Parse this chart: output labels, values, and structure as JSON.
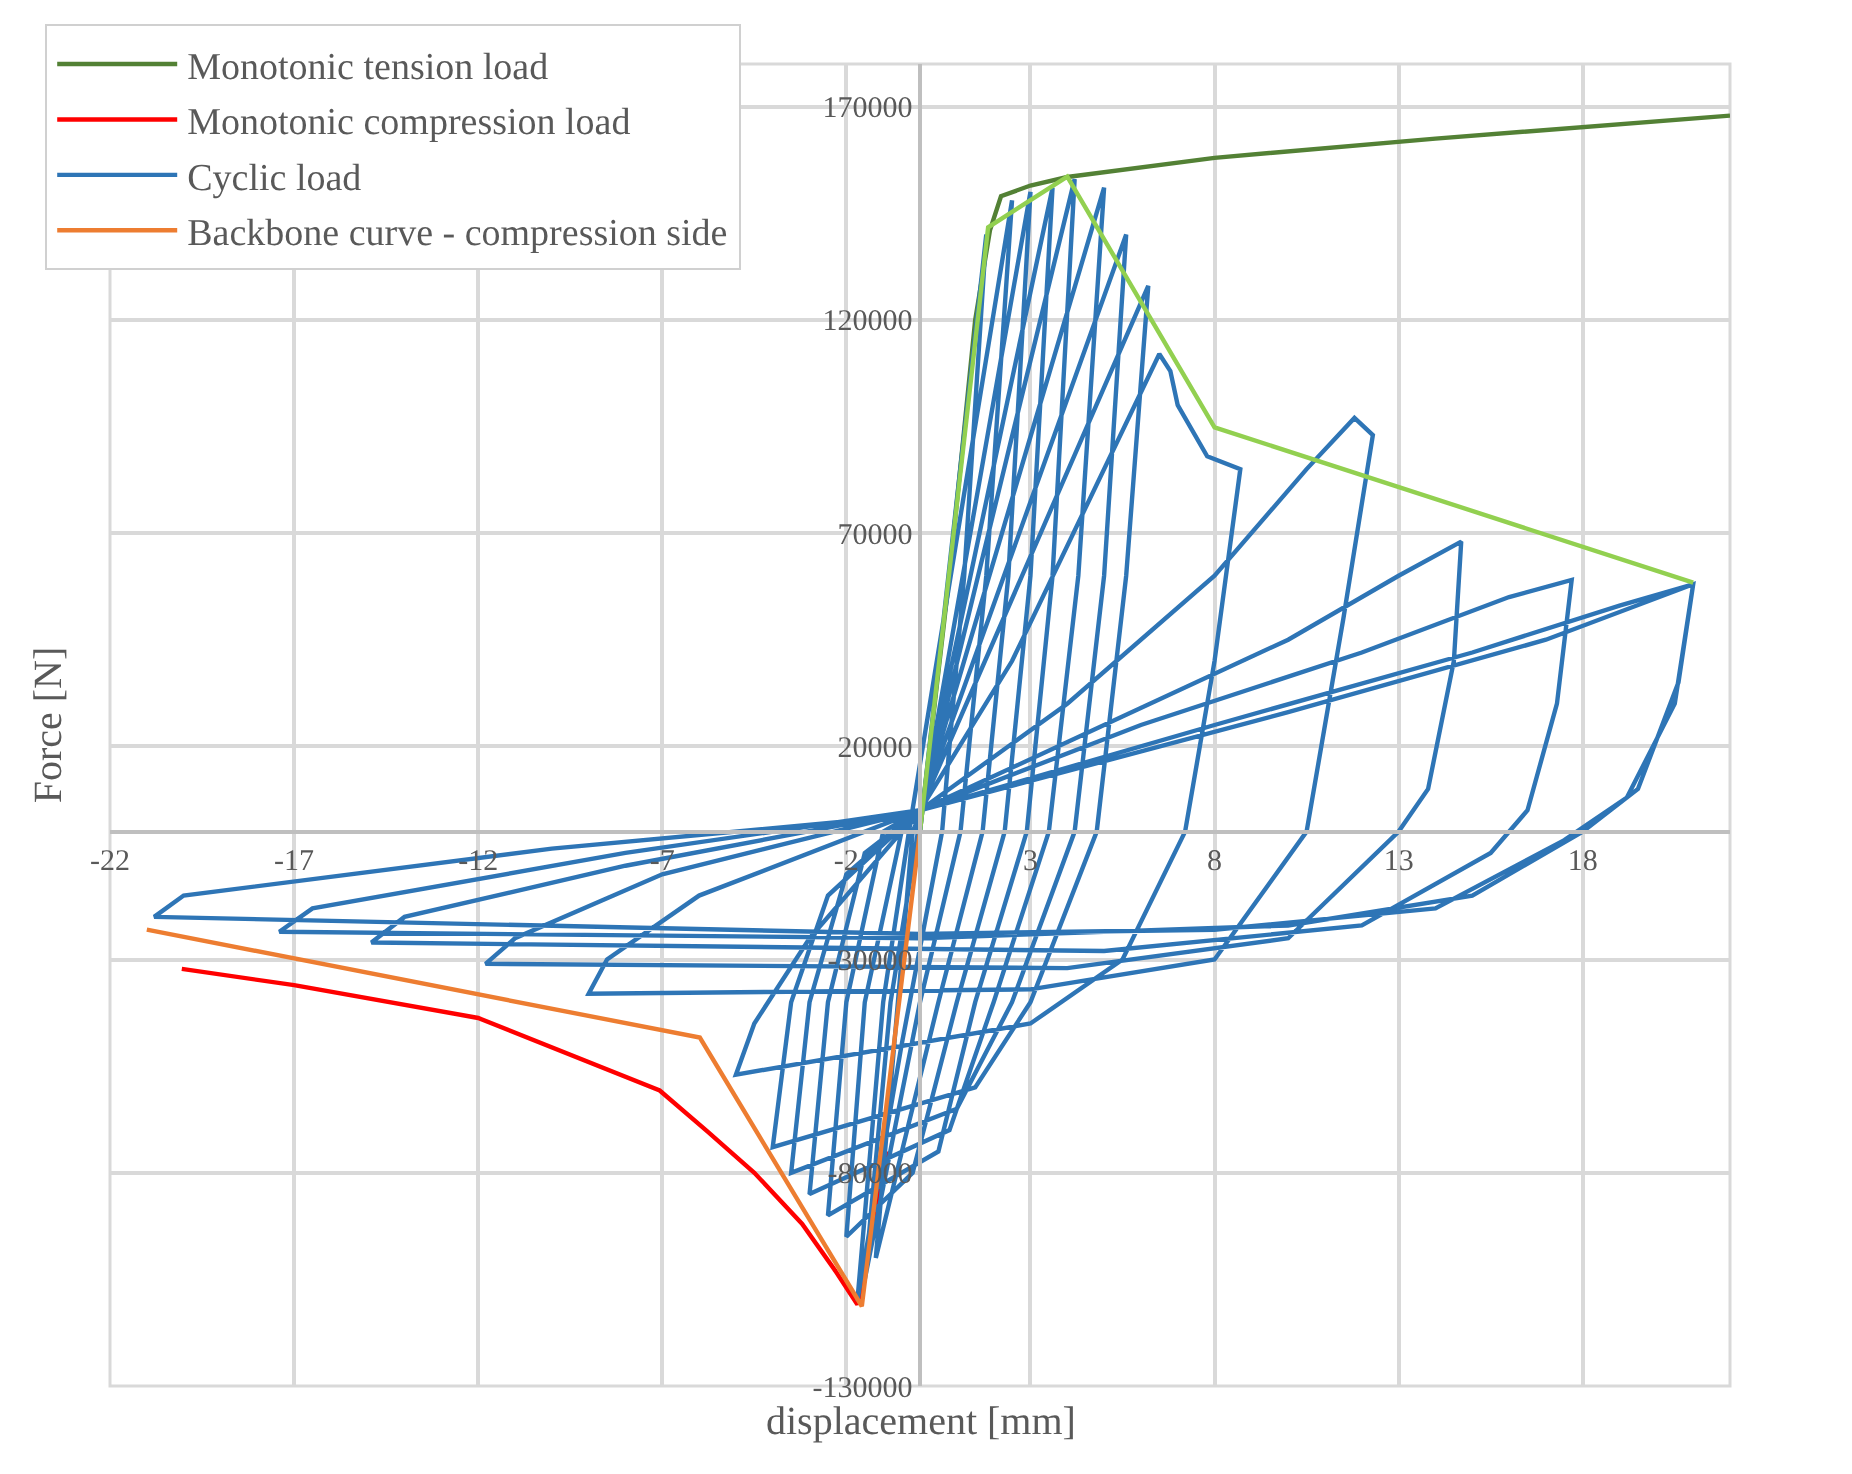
{
  "chart_data": {
    "type": "line",
    "xlabel": "displacement [mm]",
    "ylabel": "Force [N]",
    "xlim": [
      -22,
      22
    ],
    "xticks": [
      -22,
      -17,
      -12,
      -7,
      -2,
      3,
      8,
      13,
      18
    ],
    "ylim": [
      -130000,
      180000
    ],
    "yticks": [
      -130000,
      -80000,
      -30000,
      20000,
      70000,
      120000,
      170000
    ],
    "grid": true,
    "legend": "top left",
    "marker": "none",
    "line_style": "solid",
    "series": [
      {
        "name": "Monotonic tension load",
        "color": "#538135",
        "x": [
          0,
          0.8,
          1.5,
          1.9,
          2.2,
          3,
          4,
          8,
          14,
          22
        ],
        "values": [
          0,
          60000,
          120000,
          141000,
          149000,
          151500,
          153500,
          158000,
          162500,
          167900
        ]
      },
      {
        "name": "Monotonic compression load",
        "color": "#ff0000",
        "x": [
          -20.05,
          -17,
          -12,
          -7.07,
          -5.76,
          -4.5,
          -3.2,
          -2.3,
          -1.7,
          -1.3,
          -0.9
        ],
        "values": [
          -32200,
          -36000,
          -43700,
          -60700,
          -70400,
          -80000,
          -92000,
          -103000,
          -110900,
          -95000,
          -75000
        ]
      },
      {
        "name": "Cyclic load",
        "color": "#2e75b6",
        "x": [
          0,
          1.8,
          1.2,
          0.6,
          -0.5,
          -1.7,
          -1.0,
          -0.3,
          2.5,
          1.8,
          1.1,
          0,
          -1.5,
          -0.8,
          0,
          3.0,
          2.4,
          1.7,
          0.5,
          -1.2,
          -0.8,
          -0.2,
          0,
          3.6,
          3.0,
          2.3,
          1.0,
          -0.2,
          -2.0,
          -1.5,
          -0.5,
          0,
          4.2,
          3.6,
          2.9,
          1.5,
          0.5,
          -2.5,
          -2.0,
          -1.0,
          0,
          5.0,
          4.3,
          3.5,
          2.0,
          0.8,
          -3.0,
          -2.5,
          -1.5,
          0,
          5.6,
          5.0,
          4.2,
          2.5,
          1.0,
          -3.5,
          -3.0,
          -2.0,
          0,
          6.2,
          5.6,
          4.8,
          3.0,
          1.5,
          -4.0,
          -3.5,
          -2.5,
          0,
          2.5,
          6.5,
          6.8,
          7.0,
          7.8,
          8.7,
          8.0,
          7.2,
          5.5,
          3,
          -5.0,
          -4.5,
          -3,
          0,
          4,
          8,
          10.5,
          11.8,
          12.3,
          11.5,
          10.5,
          8,
          3,
          -9,
          -8.5,
          -6,
          0,
          5,
          10,
          13,
          14.7,
          14.5,
          13.8,
          13,
          10,
          4,
          -11.8,
          -11,
          -7,
          0,
          6,
          12,
          16,
          17.7,
          17.3,
          16.5,
          15.5,
          12,
          5,
          -14.9,
          -14,
          -8,
          0,
          8,
          15,
          19,
          21.0,
          20.6,
          19.5,
          18,
          15,
          10,
          0,
          -17.4,
          -16.5,
          -8,
          0,
          10,
          17,
          21.0,
          20.5,
          19.2,
          17.5,
          14,
          8,
          0,
          -20.8,
          -20,
          -10,
          0
        ],
        "values": [
          0,
          140000,
          60000,
          0,
          -50000,
          -110000,
          -40000,
          0,
          148000,
          60000,
          0,
          -40000,
          -105000,
          -40000,
          3000,
          150000,
          60000,
          0,
          -40000,
          -100000,
          -60000,
          0,
          4000,
          151000,
          60000,
          0,
          -40000,
          -80000,
          -95000,
          -40000,
          0,
          4000,
          153000,
          60000,
          0,
          -40000,
          -75000,
          -90000,
          -40000,
          0,
          5000,
          151000,
          60000,
          0,
          -40000,
          -70000,
          -85000,
          -40000,
          -5000,
          5000,
          140000,
          60000,
          0,
          -40000,
          -65000,
          -80000,
          -40000,
          -10000,
          5000,
          128000,
          60000,
          0,
          -40000,
          -60000,
          -74000,
          -40000,
          -15000,
          5000,
          40000,
          112000,
          108000,
          100000,
          88000,
          85000,
          40000,
          0,
          -30000,
          -45000,
          -57000,
          -45000,
          -25000,
          5000,
          30000,
          60000,
          85000,
          97000,
          93000,
          50000,
          0,
          -30000,
          -37000,
          -38000,
          -30000,
          -15000,
          5000,
          25000,
          45000,
          60000,
          68000,
          40000,
          10000,
          0,
          -25000,
          -32000,
          -31000,
          -25000,
          -10000,
          5000,
          25000,
          42000,
          55000,
          59000,
          30000,
          5000,
          -5000,
          -22000,
          -28000,
          -26000,
          -20000,
          -8000,
          5000,
          25000,
          42000,
          53000,
          58000,
          35000,
          10000,
          0,
          -15000,
          -22000,
          -25000,
          -23500,
          -18000,
          -5000,
          5000,
          28000,
          45000,
          58000,
          30000,
          8000,
          -2000,
          -18000,
          -23000,
          -24000,
          -20000,
          -15000,
          -4000,
          4000
        ]
      },
      {
        "name": "Backbone curve - compression side",
        "color": "#ed7d31",
        "x": [
          0,
          -1.58,
          -5.98,
          -21.0
        ],
        "values": [
          0,
          -111300,
          -48300,
          -23000
        ]
      },
      {
        "color": "#92d050",
        "x": [
          0,
          1.85,
          4.0,
          8.0,
          21.0
        ],
        "values": [
          0,
          141700,
          153600,
          94800,
          58400
        ]
      }
    ]
  }
}
